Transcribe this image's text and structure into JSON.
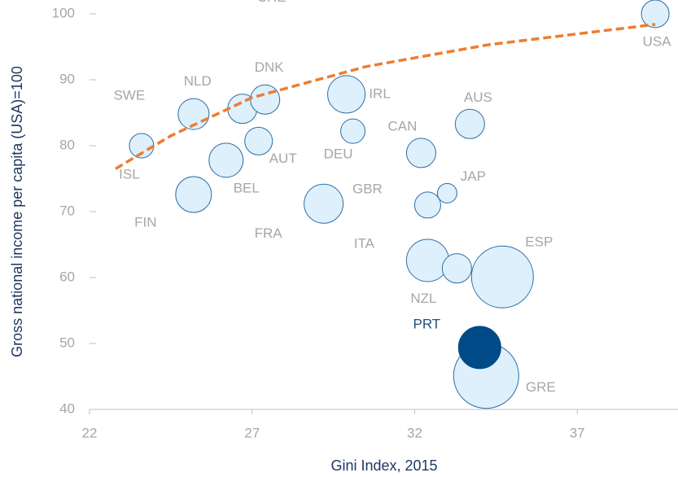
{
  "chart_data": {
    "type": "bubble",
    "x_label": "Gini Index, 2015",
    "y_label": "Gross national income per capita (USA)=100",
    "xlim": [
      22,
      40.1
    ],
    "ylim": [
      40,
      102.1
    ],
    "xticks": [
      22,
      27,
      32,
      37
    ],
    "yticks": [
      40,
      50,
      60,
      70,
      80,
      90,
      100
    ],
    "bubble_color": "#ddf0fc",
    "bubble_edge": "#2e6da4",
    "highlight_color": "#004a87",
    "highlight_label_color": "#1f4e79",
    "highlight": "PRT",
    "points": [
      {
        "name": "SWE",
        "x": 25.2,
        "y": 84.8,
        "size": 361
      },
      {
        "name": "NLD",
        "x": 26.7,
        "y": 85.6,
        "size": 324
      },
      {
        "name": "DNK",
        "x": 27.4,
        "y": 87.0,
        "size": 324
      },
      {
        "name": "IRL",
        "x": 29.9,
        "y": 87.8,
        "size": 529
      },
      {
        "name": "AUS",
        "x": 33.7,
        "y": 83.3,
        "size": 324
      },
      {
        "name": "CAN",
        "x": 32.2,
        "y": 78.9,
        "size": 324
      },
      {
        "name": "DEU",
        "x": 30.1,
        "y": 82.2,
        "size": 225
      },
      {
        "name": "AUT",
        "x": 27.2,
        "y": 80.7,
        "size": 289
      },
      {
        "name": "ISL",
        "x": 23.6,
        "y": 80.0,
        "size": 225
      },
      {
        "name": "BEL",
        "x": 26.2,
        "y": 77.8,
        "size": 441
      },
      {
        "name": "GBR",
        "x": 32.4,
        "y": 71.0,
        "size": 256
      },
      {
        "name": "FRA",
        "x": 29.2,
        "y": 71.2,
        "size": 576
      },
      {
        "name": "FIN",
        "x": 25.2,
        "y": 72.6,
        "size": 484
      },
      {
        "name": "JAP",
        "x": 33.0,
        "y": 72.8,
        "size": 144
      },
      {
        "name": "ITA",
        "x": 32.4,
        "y": 62.6,
        "size": 676
      },
      {
        "name": "NZL",
        "x": 33.3,
        "y": 61.4,
        "size": 324
      },
      {
        "name": "ESP",
        "x": 34.7,
        "y": 60.1,
        "size": 1444
      },
      {
        "name": "GRE",
        "x": 34.2,
        "y": 45.1,
        "size": 1600
      },
      {
        "name": "PRT",
        "x": 34.0,
        "y": 49.4,
        "size": 676
      },
      {
        "name": "USA",
        "x": 39.4,
        "y": 100,
        "size": 289
      }
    ],
    "trend": {
      "color": "#ed7d31",
      "x": [
        22.8,
        24.5,
        27,
        30.5,
        34.25,
        39.4
      ],
      "y": [
        76.5,
        81.5,
        87.3,
        92.0,
        95.3,
        98.4
      ]
    },
    "annotations": [
      {
        "text": "CHE",
        "x": 27.6,
        "y": 102.4
      }
    ]
  }
}
